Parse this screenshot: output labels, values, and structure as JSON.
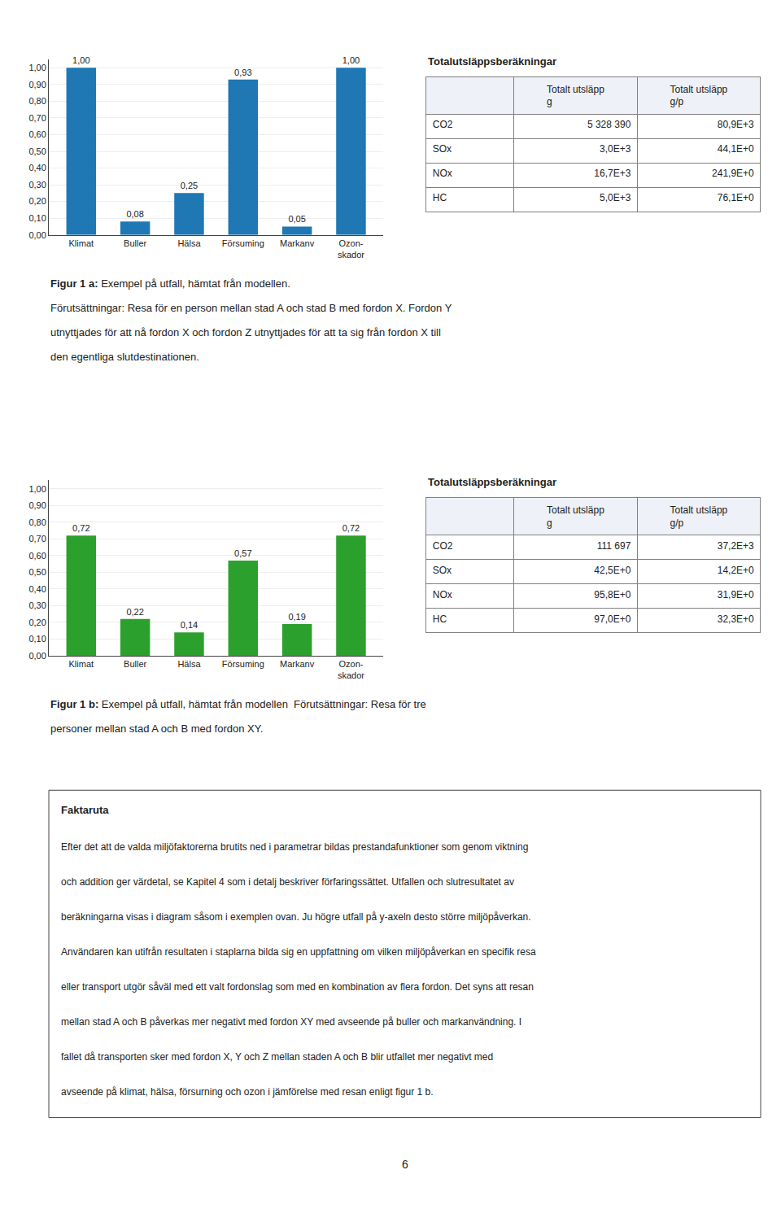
{
  "chart_data": [
    {
      "type": "bar",
      "categories": [
        "Klimat",
        "Buller",
        "Hälsa",
        "Försuming",
        "Markanv",
        "Ozon-\nskador"
      ],
      "values": [
        1.0,
        0.08,
        0.25,
        0.93,
        0.05,
        1.0
      ],
      "value_labels": [
        "1,00",
        "0,08",
        "0,25",
        "0,93",
        "0,05",
        "1,00"
      ],
      "data_labels": true,
      "ylim": [
        0,
        1.05
      ],
      "yticks": [
        {
          "value": 0.0,
          "label": "0,00"
        },
        {
          "value": 0.1,
          "label": "0,10"
        },
        {
          "value": 0.2,
          "label": "0,20"
        },
        {
          "value": 0.3,
          "label": "0,30"
        },
        {
          "value": 0.4,
          "label": "0,40"
        },
        {
          "value": 0.5,
          "label": "0,50"
        },
        {
          "value": 0.6,
          "label": "0,60"
        },
        {
          "value": 0.7,
          "label": "0,70"
        },
        {
          "value": 0.8,
          "label": "0,80"
        },
        {
          "value": 0.9,
          "label": "0,90"
        },
        {
          "value": 1.0,
          "label": "1,00"
        }
      ],
      "grid": true,
      "table": {
        "title": "Totalutsläppsberäkningar",
        "columns": [
          [
            "Totalt utsläpp",
            "g"
          ],
          [
            "Totalt utsläpp",
            "g/p"
          ]
        ],
        "rows": [
          [
            "CO2",
            "5 328 390",
            "80,9E+3"
          ],
          [
            "SOx",
            "3,0E+3",
            "44,1E+0"
          ],
          [
            "NOx",
            "16,7E+3",
            "241,9E+0"
          ],
          [
            "HC",
            "5,0E+3",
            "76,1E+0"
          ]
        ]
      },
      "caption": {
        "label": "Figur 1 a:",
        "lines": [
          " Exempel på utfall, hämtat från modellen.",
          "Förutsättningar: Resa för en person mellan stad A och stad B med fordon X. Fordon Y",
          "utnyttjades för att nå fordon X och fordon Z utnyttjades för att ta sig från fordon X till",
          "den egentliga slutdestinationen."
        ]
      }
    },
    {
      "type": "bar",
      "categories": [
        "Klimat",
        "Buller",
        "Hälsa",
        "Försuming",
        "Markanv",
        "Ozon-\nskador"
      ],
      "values": [
        0.72,
        0.22,
        0.14,
        0.57,
        0.19,
        0.72
      ],
      "value_labels": [
        "0,72",
        "0,22",
        "0,14",
        "0,57",
        "0,19",
        "0,72"
      ],
      "data_labels": true,
      "ylim": [
        0,
        1.05
      ],
      "yticks": [
        {
          "value": 0.0,
          "label": "0,00"
        },
        {
          "value": 0.1,
          "label": "0,10"
        },
        {
          "value": 0.2,
          "label": "0,20"
        },
        {
          "value": 0.3,
          "label": "0,30"
        },
        {
          "value": 0.4,
          "label": "0,40"
        },
        {
          "value": 0.5,
          "label": "0,50"
        },
        {
          "value": 0.6,
          "label": "0,60"
        },
        {
          "value": 0.7,
          "label": "0,70"
        },
        {
          "value": 0.8,
          "label": "0,80"
        },
        {
          "value": 0.9,
          "label": "0,90"
        },
        {
          "value": 1.0,
          "label": "1,00"
        }
      ],
      "grid": true,
      "table": {
        "title": "Totalutsläppsberäkningar",
        "columns": [
          [
            "Totalt utsläpp",
            "g"
          ],
          [
            "Totalt utsläpp",
            "g/p"
          ]
        ],
        "rows": [
          [
            "CO2",
            "111 697",
            "37,2E+3"
          ],
          [
            "SOx",
            "42,5E+0",
            "14,2E+0"
          ],
          [
            "NOx",
            "95,8E+0",
            "31,9E+0"
          ],
          [
            "HC",
            "97,0E+0",
            "32,3E+0"
          ]
        ]
      },
      "caption": {
        "label": "Figur 1 b:",
        "lines": [
          " Exempel på utfall, hämtat från modellen  Förutsättningar: Resa för tre",
          "personer mellan stad A och B med fordon XY."
        ]
      }
    }
  ],
  "faktaruta": {
    "title": "Faktaruta",
    "lines": [
      "Efter det att de valda miljöfaktorerna brutits ned i parametrar bildas prestandafunktioner som genom viktning",
      "och addition ger värdetal, se Kapitel 4 som i detalj beskriver förfaringssättet. Utfallen och slutresultatet av",
      "beräkningarna visas i diagram såsom i exemplen ovan. Ju högre utfall på y-axeln desto större miljöpåverkan.",
      "Användaren kan utifrån resultaten i staplarna bilda sig en uppfattning om vilken miljöpåverkan en specifik resa",
      "eller transport utgör såväl med ett valt fordonslag som med en kombination av flera fordon. Det syns att resan",
      "mellan stad A och B påverkas mer negativt med fordon XY med avseende på buller och markanvändning. I",
      "fallet då transporten sker med fordon X, Y och Z mellan staden A och B blir utfallet mer negativt med",
      "avseende på klimat, hälsa, försurning och ozon i jämförelse med resan enligt figur 1 b."
    ]
  },
  "page_number": "6"
}
